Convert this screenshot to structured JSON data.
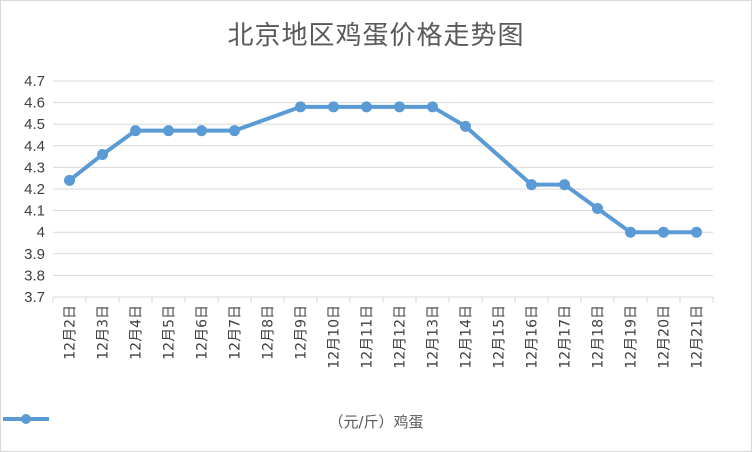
{
  "chart_data": {
    "type": "line",
    "title": "北京地区鸡蛋价格走势图",
    "categories": [
      "12月2日",
      "12月3日",
      "12月4日",
      "12月5日",
      "12月6日",
      "12月7日",
      "12月8日",
      "12月9日",
      "12月10日",
      "12月11日",
      "12月12日",
      "12月13日",
      "12月14日",
      "12月15日",
      "12月16日",
      "12月17日",
      "12月18日",
      "12月19日",
      "12月20日",
      "12月21日"
    ],
    "series": [
      {
        "name": "（元/斤）鸡蛋",
        "values": [
          4.24,
          4.36,
          4.47,
          4.47,
          4.47,
          4.47,
          null,
          4.58,
          4.58,
          4.58,
          4.58,
          4.58,
          4.49,
          null,
          4.22,
          4.22,
          4.11,
          4.0,
          4.0,
          4.0
        ],
        "color": "#5b9bd5"
      }
    ],
    "ylim": [
      3.7,
      4.7
    ],
    "yticks": [
      "3.7",
      "3.8",
      "3.9",
      "4",
      "4.1",
      "4.2",
      "4.3",
      "4.4",
      "4.5",
      "4.6",
      "4.7"
    ],
    "grid": true,
    "legend_position": "bottom"
  },
  "colors": {
    "series": "#5b9bd5",
    "grid": "#d9d9d9",
    "text": "#595959"
  }
}
